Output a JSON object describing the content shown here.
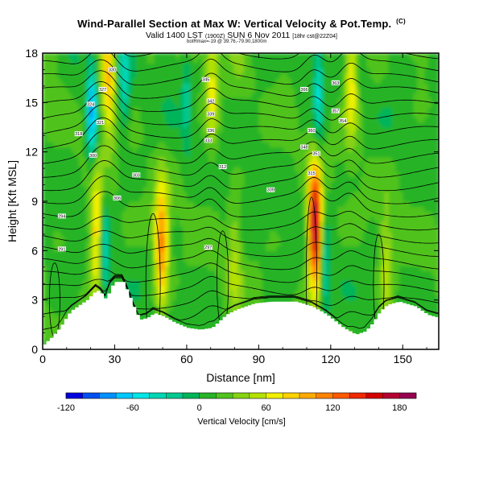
{
  "header": {
    "title": "Wind-Parallel Section at Max W: Vertical Velocity & Pot.Temp.",
    "title_mark": "(C)",
    "subtitle": "Valid 1400 LST",
    "subtitle_small": "(1900Z)",
    "subtitle_date": "SUN 6 Nov 2011",
    "subtitle_tail": "[18hr cst@22Z04]",
    "subline": "botRmax=-19 @ 39.76,-79.90,1800m"
  },
  "chart_data": {
    "type": "heatmap",
    "title": "Wind-Parallel Section at Max W: Vertical Velocity & Pot.Temp.",
    "xlabel": "Distance [nm]",
    "ylabel": "Height [Kft MSL]",
    "xlim": [
      0,
      165
    ],
    "ylim": [
      0,
      18
    ],
    "xticks": [
      0,
      30,
      60,
      90,
      120,
      150
    ],
    "yticks": [
      0,
      3,
      6,
      9,
      12,
      15,
      18
    ],
    "xtick_labels": [
      "0",
      "30",
      "60",
      "90",
      "120",
      "150"
    ],
    "ytick_labels": [
      "0",
      "3",
      "6",
      "9",
      "12",
      "15",
      "18"
    ],
    "colorbar": {
      "label": "Vertical Velocity [cm/s]",
      "range": [
        -120,
        195
      ],
      "step": 15,
      "tick_values": [
        -120,
        -60,
        0,
        60,
        120,
        180
      ],
      "tick_labels": [
        "-120",
        "-60",
        "0",
        "60",
        "120",
        "180"
      ],
      "colors": [
        "#0000e0",
        "#0050f0",
        "#0090ff",
        "#00c8ff",
        "#00e6e6",
        "#00d6b4",
        "#00c890",
        "#00b45a",
        "#28b428",
        "#50c31e",
        "#87d214",
        "#b4e100",
        "#f0f000",
        "#ffd200",
        "#ffaa00",
        "#ff8200",
        "#ff5a00",
        "#f02800",
        "#d20000",
        "#b40032",
        "#960050"
      ]
    },
    "terrain": [
      [
        0,
        0.3
      ],
      [
        3,
        0.7
      ],
      [
        6,
        1.2
      ],
      [
        8,
        1.6
      ],
      [
        10,
        2.1
      ],
      [
        12,
        2.4
      ],
      [
        15,
        2.7
      ],
      [
        18,
        3.0
      ],
      [
        20,
        3.3
      ],
      [
        22,
        3.6
      ],
      [
        24,
        3.4
      ],
      [
        26,
        3.0
      ],
      [
        28,
        3.8
      ],
      [
        30,
        4.1
      ],
      [
        33,
        4.1
      ],
      [
        35,
        3.5
      ],
      [
        38,
        2.4
      ],
      [
        40,
        1.8
      ],
      [
        43,
        1.9
      ],
      [
        46,
        2.2
      ],
      [
        50,
        2.0
      ],
      [
        55,
        1.6
      ],
      [
        60,
        1.3
      ],
      [
        65,
        1.2
      ],
      [
        70,
        1.3
      ],
      [
        73,
        1.7
      ],
      [
        76,
        2.1
      ],
      [
        80,
        2.4
      ],
      [
        84,
        2.6
      ],
      [
        88,
        2.8
      ],
      [
        95,
        2.9
      ],
      [
        105,
        2.9
      ],
      [
        112,
        2.6
      ],
      [
        118,
        2.1
      ],
      [
        125,
        1.3
      ],
      [
        130,
        0.9
      ],
      [
        134,
        1.1
      ],
      [
        137,
        1.6
      ],
      [
        140,
        2.3
      ],
      [
        143,
        2.7
      ],
      [
        148,
        2.9
      ],
      [
        155,
        2.6
      ],
      [
        160,
        2.1
      ],
      [
        165,
        1.9
      ]
    ],
    "updrafts": [
      {
        "x": 113.5,
        "y": 7.5,
        "value": 180
      },
      {
        "x": 49.5,
        "y": 6.5,
        "value": 105
      },
      {
        "x": 22.5,
        "y": 7.0,
        "value": 85
      },
      {
        "x": 27.5,
        "y": 16.5,
        "value": 80
      },
      {
        "x": 70.5,
        "y": 16.0,
        "value": 60
      },
      {
        "x": 128.5,
        "y": 16.5,
        "value": 75
      },
      {
        "x": 143.0,
        "y": 5.0,
        "value": 40
      },
      {
        "x": 80.0,
        "y": 5.5,
        "value": 35
      }
    ],
    "downdrafts": [
      {
        "x": 25.5,
        "y": 6.0,
        "value": -60
      },
      {
        "x": 20.5,
        "y": 14.5,
        "value": -90
      },
      {
        "x": 117.5,
        "y": 5.0,
        "value": -45
      },
      {
        "x": 115.0,
        "y": 15.5,
        "value": -60
      },
      {
        "x": 60.0,
        "y": 15.5,
        "value": -35
      },
      {
        "x": 34.0,
        "y": 16.0,
        "value": -40
      }
    ],
    "theta_labels": [
      {
        "x": 8,
        "y": 6.1,
        "text": "291"
      },
      {
        "x": 8,
        "y": 8.1,
        "text": "294"
      },
      {
        "x": 21,
        "y": 11.8,
        "text": "300"
      },
      {
        "x": 39,
        "y": 10.6,
        "text": "303"
      },
      {
        "x": 31,
        "y": 9.2,
        "text": "306"
      },
      {
        "x": 69,
        "y": 6.2,
        "text": "297"
      },
      {
        "x": 75,
        "y": 11.1,
        "text": "312"
      },
      {
        "x": 95,
        "y": 9.7,
        "text": "309"
      },
      {
        "x": 112,
        "y": 10.7,
        "text": "315"
      },
      {
        "x": 15,
        "y": 13.1,
        "text": "318"
      },
      {
        "x": 24,
        "y": 13.8,
        "text": "321"
      },
      {
        "x": 20,
        "y": 14.9,
        "text": "324"
      },
      {
        "x": 25,
        "y": 15.8,
        "text": "327"
      },
      {
        "x": 29,
        "y": 17.0,
        "text": "330"
      },
      {
        "x": 69,
        "y": 12.7,
        "text": "333"
      },
      {
        "x": 70,
        "y": 13.3,
        "text": "336"
      },
      {
        "x": 70,
        "y": 14.3,
        "text": "339"
      },
      {
        "x": 70,
        "y": 15.1,
        "text": "342"
      },
      {
        "x": 68,
        "y": 16.4,
        "text": "345"
      },
      {
        "x": 109,
        "y": 12.3,
        "text": "348"
      },
      {
        "x": 114,
        "y": 11.9,
        "text": "351"
      },
      {
        "x": 125,
        "y": 13.9,
        "text": "354"
      },
      {
        "x": 122,
        "y": 14.5,
        "text": "357"
      },
      {
        "x": 112,
        "y": 13.3,
        "text": "360"
      },
      {
        "x": 122,
        "y": 16.2,
        "text": "363"
      },
      {
        "x": 109,
        "y": 15.8,
        "text": "366"
      }
    ]
  }
}
